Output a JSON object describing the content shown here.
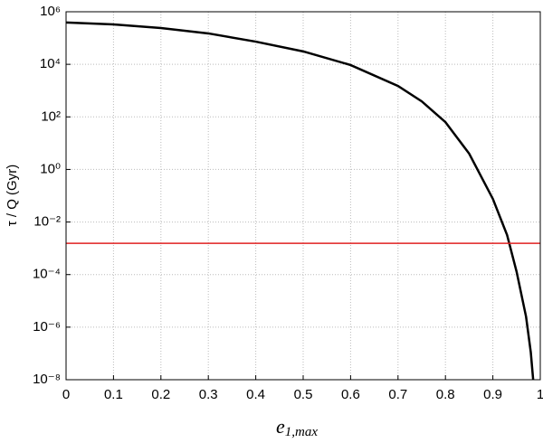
{
  "chart_data": {
    "type": "line",
    "ylabel": "τ / Q  (Gyr)",
    "xlabel": {
      "main": "e",
      "sub": "1,max"
    },
    "log_y": true,
    "grid": true,
    "xlim": [
      0,
      1
    ],
    "ylim": [
      1e-08,
      1000000.0
    ],
    "xticks": [
      0,
      0.1,
      0.2,
      0.3,
      0.4,
      0.5,
      0.6,
      0.7,
      0.8,
      0.9,
      1
    ],
    "yticks": [
      {
        "value": 1e-08,
        "label": "10⁻⁸"
      },
      {
        "value": 1e-06,
        "label": "10⁻⁶"
      },
      {
        "value": 0.0001,
        "label": "10⁻⁴"
      },
      {
        "value": 0.01,
        "label": "10⁻²"
      },
      {
        "value": 1,
        "label": "10⁰"
      },
      {
        "value": 100,
        "label": "10²"
      },
      {
        "value": 10000,
        "label": "10⁴"
      },
      {
        "value": 1000000,
        "label": "10⁶"
      }
    ],
    "series": [
      {
        "color": "#000000",
        "width": 2.5,
        "x": [
          0,
          0.1,
          0.2,
          0.3,
          0.4,
          0.5,
          0.6,
          0.7,
          0.75,
          0.8,
          0.85,
          0.9,
          0.93,
          0.95,
          0.97,
          0.98,
          0.985
        ],
        "values": [
          390000,
          330000,
          240000,
          150000,
          73000,
          31000,
          9400,
          1500,
          390,
          63,
          4,
          0.076,
          0.0032,
          0.00013,
          2.5e-06,
          1.1e-07,
          1e-08
        ]
      },
      {
        "color": "#e02020",
        "width": 1.5,
        "x": [
          0,
          1
        ],
        "values": [
          0.00155,
          0.00155
        ]
      }
    ]
  }
}
